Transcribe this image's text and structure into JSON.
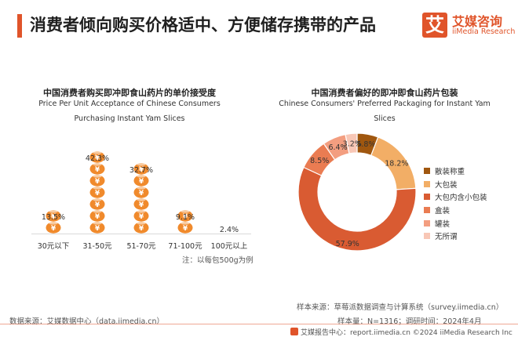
{
  "header": {
    "title": "消费者倾向购买价格适中、方便储存携带的产品",
    "logo_mark": "艾",
    "logo_cn": "艾媒咨询",
    "logo_en": "iiMedia Research"
  },
  "chart_data": [
    {
      "type": "bar",
      "title": "中国消费者购买即冲即食山药片的单价接受度",
      "subtitle": "Price Per Unit Acceptance of Chinese Consumers Purchasing Instant Yam Slices",
      "categories": [
        "30元以下",
        "31-50元",
        "51-70元",
        "71-100元",
        "100元以上"
      ],
      "values": [
        13.5,
        42.3,
        32.7,
        9.1,
        2.4
      ],
      "value_labels": [
        "13.5%",
        "42.3%",
        "32.7%",
        "9.1%",
        "2.4%"
      ],
      "unit": "%",
      "ylim": [
        0,
        45
      ],
      "color": "#f08a2c",
      "coin_symbol": "¥",
      "note": "注：以每包500g为例"
    },
    {
      "type": "pie",
      "title": "中国消费者偏好的即冲即食山药片包装",
      "subtitle": "Chinese Consumers' Preferred Packaging for Instant Yam Slices",
      "labels": [
        "散装称重",
        "大包装",
        "大包内含小包装",
        "盒装",
        "罐装",
        "无所谓"
      ],
      "values": [
        5.8,
        18.2,
        57.9,
        8.5,
        6.4,
        3.2
      ],
      "value_labels": [
        "5.8%",
        "18.2%",
        "57.9%",
        "8.5%",
        "6.4%",
        "3.2%"
      ],
      "colors": [
        "#a0570f",
        "#f2ae66",
        "#d95b32",
        "#ea7c52",
        "#f39e80",
        "#f8c7b6"
      ],
      "donut": true,
      "legend_position": "right"
    }
  ],
  "source_left": "数据来源：艾媒数据中心（data.iimedia.cn）",
  "source_right_1": "样本来源：草莓派数据调查与计算系统（survey.iimedia.cn）",
  "source_right_2": "样本量：N=1316；调研时间：2024年4月",
  "footer": "艾媒报告中心：report.iimedia.cn  ©2024 iiMedia Research Inc"
}
